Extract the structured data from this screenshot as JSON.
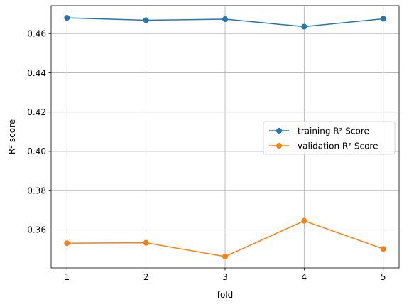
{
  "chart_data": {
    "type": "line",
    "title": "",
    "xlabel": "fold",
    "ylabel": "R² score",
    "x": [
      1,
      2,
      3,
      4,
      5
    ],
    "xlim": [
      0.8,
      5.2
    ],
    "ylim": [
      0.3406,
      0.4742
    ],
    "xticks": [
      "1",
      "2",
      "3",
      "4",
      "5"
    ],
    "yticks": [
      0.36,
      0.38,
      0.4,
      0.42,
      0.44,
      0.46
    ],
    "ytick_labels": [
      "0.36",
      "0.38",
      "0.40",
      "0.42",
      "0.44",
      "0.46"
    ],
    "grid": true,
    "legend": "center-right",
    "series": [
      {
        "name": "training R² Score",
        "color": "#1f77b4",
        "marker": "circle",
        "values": [
          0.468,
          0.4668,
          0.4673,
          0.4635,
          0.4675
        ]
      },
      {
        "name": "validation R² Score",
        "color": "#ff7f0e",
        "marker": "circle",
        "values": [
          0.3532,
          0.3534,
          0.3464,
          0.3646,
          0.3503
        ]
      }
    ]
  }
}
